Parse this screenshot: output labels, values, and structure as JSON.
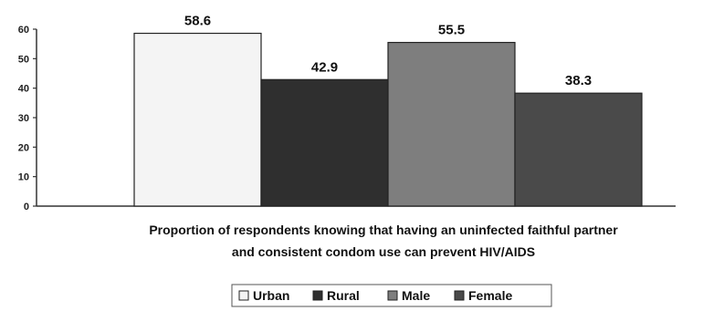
{
  "chart_data": {
    "type": "bar",
    "categories": [
      "Urban",
      "Rural",
      "Male",
      "Female"
    ],
    "values": [
      58.6,
      42.9,
      55.5,
      38.3
    ],
    "colors": [
      "#f4f4f4",
      "#2f2f2f",
      "#7e7e7e",
      "#4a4a4a"
    ],
    "ylim": [
      0,
      60
    ],
    "yticks": [
      0,
      10,
      20,
      30,
      40,
      50,
      60
    ],
    "data_labels": [
      "58.6",
      "42.9",
      "55.5",
      "38.3"
    ],
    "caption": [
      "Proportion of respondents knowing that having an uninfected faithful partner",
      "and consistent condom use can prevent HIV/AIDS"
    ],
    "legend": [
      "Urban",
      "Rural",
      "Male",
      "Female"
    ],
    "legend_position": "bottom",
    "grid": false
  }
}
